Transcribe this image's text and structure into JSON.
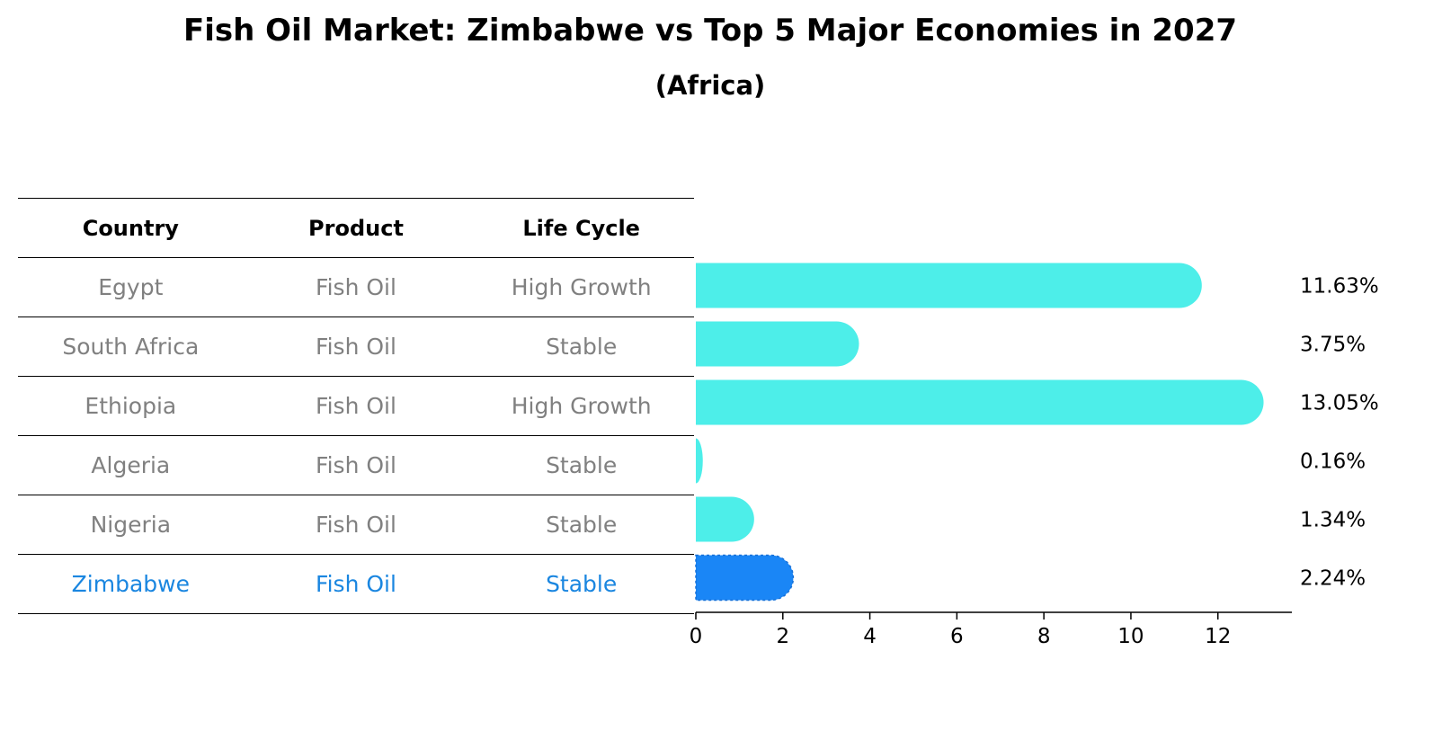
{
  "title": "Fish Oil Market: Zimbabwe vs Top 5 Major Economies in 2027",
  "subtitle": "(Africa)",
  "table": {
    "headers": [
      "Country",
      "Product",
      "Life Cycle"
    ],
    "rows": [
      {
        "country": "Egypt",
        "product": "Fish Oil",
        "life_cycle": "High Growth"
      },
      {
        "country": "South Africa",
        "product": "Fish Oil",
        "life_cycle": "Stable"
      },
      {
        "country": "Ethiopia",
        "product": "Fish Oil",
        "life_cycle": "High Growth"
      },
      {
        "country": "Algeria",
        "product": "Fish Oil",
        "life_cycle": "Stable"
      },
      {
        "country": "Nigeria",
        "product": "Fish Oil",
        "life_cycle": "Stable"
      },
      {
        "country": "Zimbabwe",
        "product": "Fish Oil",
        "life_cycle": "Stable"
      }
    ]
  },
  "colors": {
    "bar": "#4deee9",
    "highlight": "#1a86f6",
    "highlight_text": "#1a86e0",
    "muted_text": "#808080"
  },
  "chart_data": {
    "type": "bar",
    "orientation": "horizontal",
    "title": "Fish Oil Market: Zimbabwe vs Top 5 Major Economies in 2027",
    "subtitle": "(Africa)",
    "categories": [
      "Egypt",
      "South Africa",
      "Ethiopia",
      "Algeria",
      "Nigeria",
      "Zimbabwe"
    ],
    "values": [
      11.63,
      3.75,
      13.05,
      0.16,
      1.34,
      2.24
    ],
    "value_labels": [
      "11.63%",
      "3.75%",
      "13.05%",
      "0.16%",
      "1.34%",
      "2.24%"
    ],
    "highlight": "Zimbabwe",
    "xlim": [
      0,
      13.7
    ],
    "xticks": [
      0,
      2,
      4,
      6,
      8,
      10,
      12
    ],
    "xlabel": "",
    "ylabel": "",
    "grid": false
  }
}
